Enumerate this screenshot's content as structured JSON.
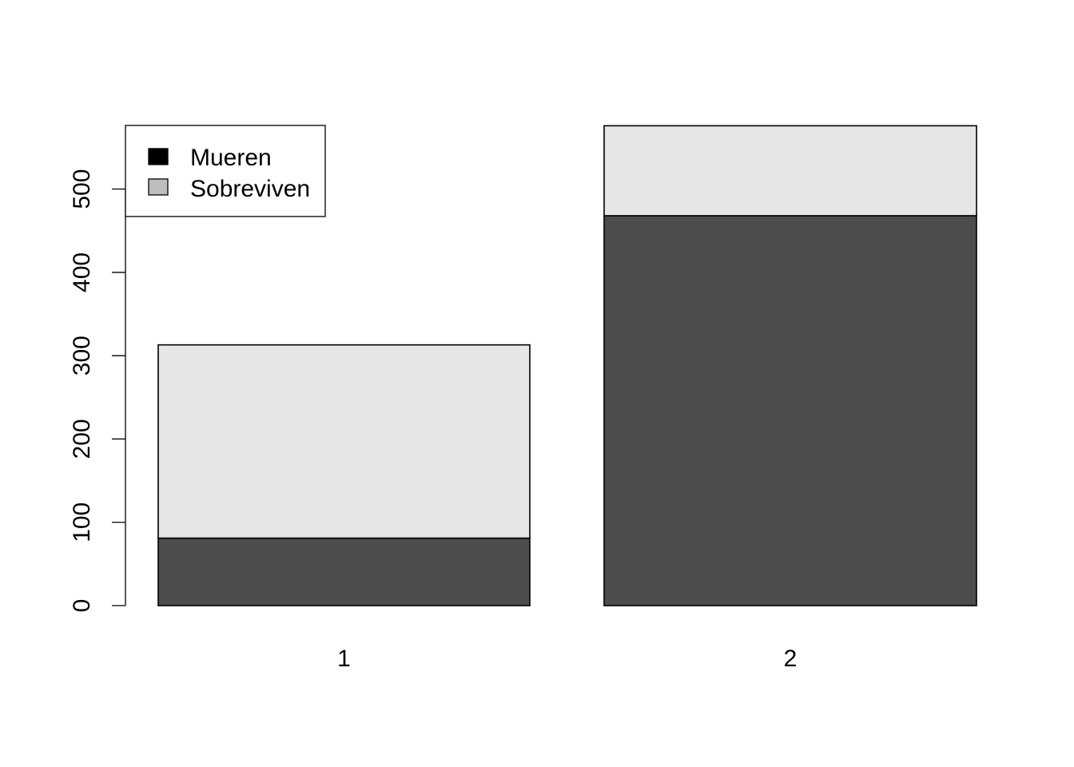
{
  "chart_data": {
    "type": "bar",
    "stacked": true,
    "categories": [
      "1",
      "2"
    ],
    "series": [
      {
        "name": "Mueren",
        "values": [
          81,
          468
        ],
        "color": "#4d4d4d"
      },
      {
        "name": "Sobreviven",
        "values": [
          232,
          108
        ],
        "color": "#e6e6e6"
      }
    ],
    "legend": {
      "placement": "top-left",
      "items": [
        {
          "label": "Mueren",
          "color": "#000000"
        },
        {
          "label": "Sobreviven",
          "color": "#bebebe"
        }
      ]
    },
    "yaxis": {
      "ticks": [
        0,
        100,
        200,
        300,
        400,
        500
      ],
      "labels": [
        "0",
        "100",
        "200",
        "300",
        "400",
        "500"
      ],
      "ylim": [
        0,
        576
      ]
    },
    "grid": false,
    "title": "",
    "xlabel": "",
    "ylabel": ""
  }
}
